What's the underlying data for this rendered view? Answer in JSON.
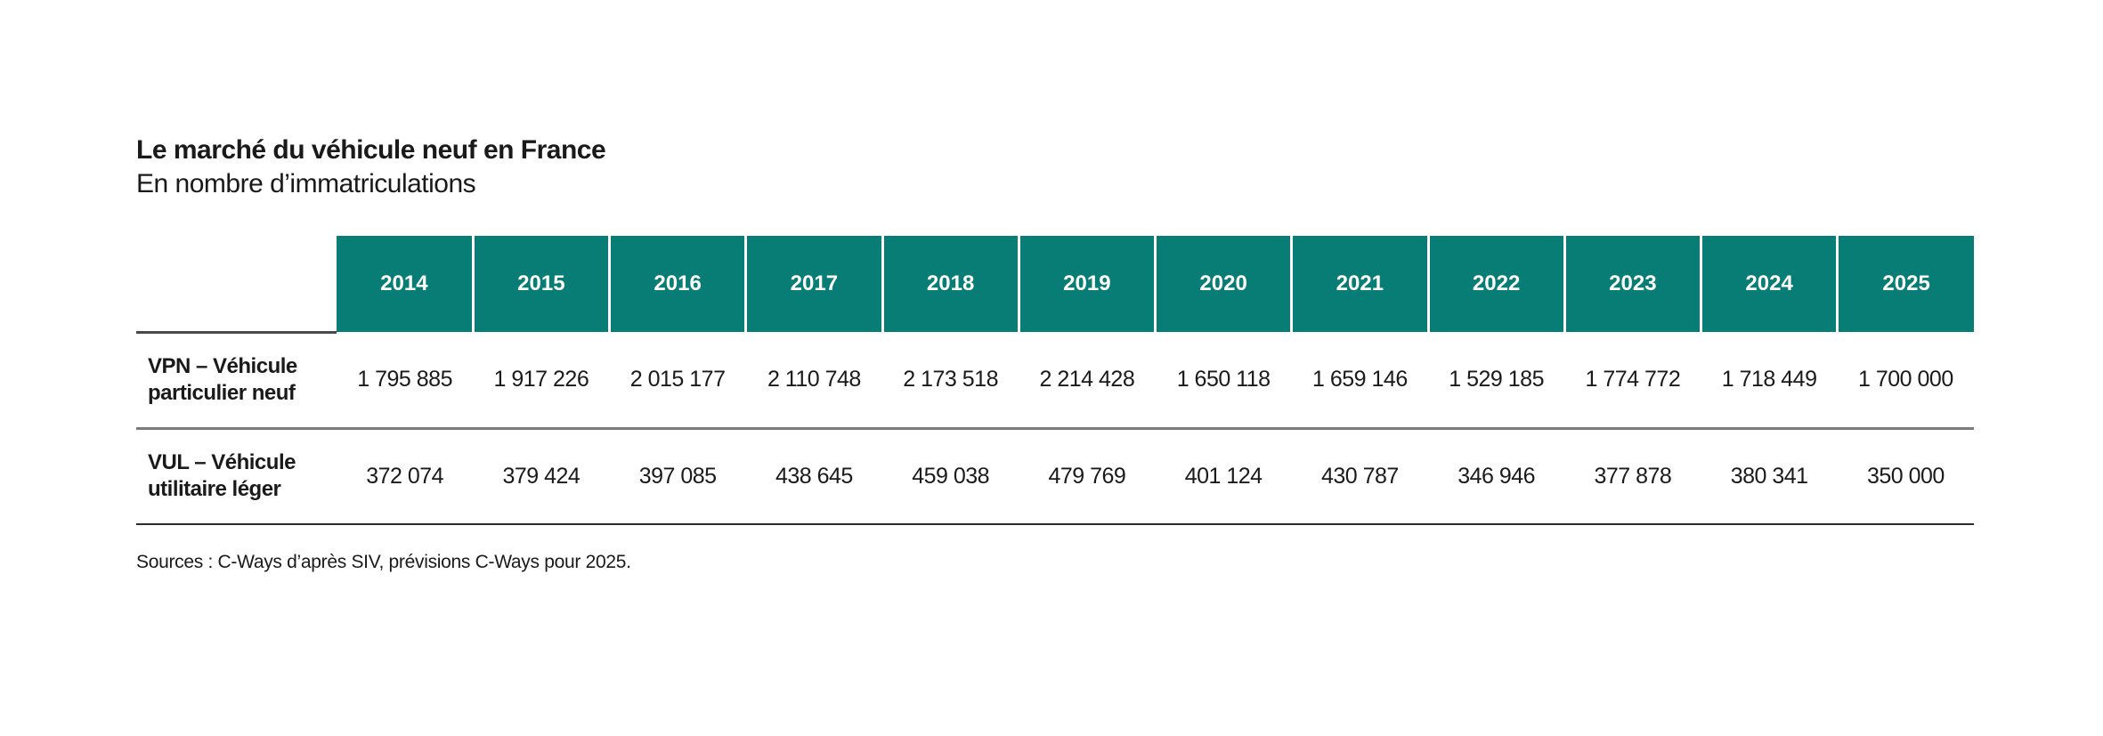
{
  "page": {
    "title": "Le marché du véhicule neuf en France",
    "subtitle": "En nombre d’immatriculations",
    "source_note": "Sources : C-Ways d’après SIV, prévisions C-Ways pour 2025."
  },
  "colors": {
    "header_bg": "#077d75",
    "header_text": "#ffffff",
    "body_text": "#1a1a1a",
    "header_label_rule": "#4a4a4a",
    "row_separator_rule": "#7a7a7a",
    "bottom_rule": "#2b2b2b"
  },
  "chart_data": {
    "type": "table",
    "title": "Le marché du véhicule neuf en France",
    "subtitle": "En nombre d’immatriculations",
    "categories": [
      "2014",
      "2015",
      "2016",
      "2017",
      "2018",
      "2019",
      "2020",
      "2021",
      "2022",
      "2023",
      "2024",
      "2025"
    ],
    "series": [
      {
        "name": "VPN – Véhicule particulier neuf",
        "values": [
          1795885,
          1917226,
          2015177,
          2110748,
          2173518,
          2214428,
          1650118,
          1659146,
          1529185,
          1774772,
          1718449,
          1700000
        ],
        "display": [
          "1 795 885",
          "1 917 226",
          "2 015 177",
          "2 110 748",
          "2 173 518",
          "2 214 428",
          "1 650 118",
          "1 659 146",
          "1 529 185",
          "1 774 772",
          "1 718 449",
          "1 700 000"
        ]
      },
      {
        "name": "VUL – Véhicule utilitaire léger",
        "values": [
          372074,
          379424,
          397085,
          438645,
          459038,
          479769,
          401124,
          430787,
          346946,
          377878,
          380341,
          350000
        ],
        "display": [
          "372 074",
          "379 424",
          "397 085",
          "438 645",
          "459 038",
          "479 769",
          "401 124",
          "430 787",
          "346 946",
          "377 878",
          "380 341",
          "350 000"
        ]
      }
    ],
    "source": "Sources : C-Ways d’après SIV, prévisions C-Ways pour 2025.",
    "layout": {
      "legend": "none",
      "grid": "horizontal-rules-only",
      "header_style": "teal-filled-cells-white-bold-text"
    }
  }
}
